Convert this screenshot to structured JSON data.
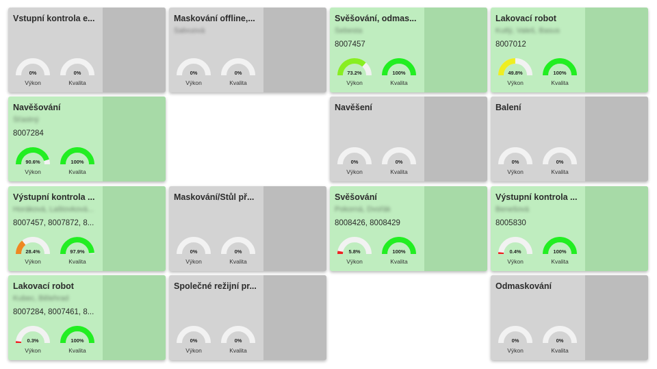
{
  "labels": {
    "performance": "Výkon",
    "quality": "Kvalita"
  },
  "colors": {
    "card_gray": "#d3d3d3",
    "card_green": "#bfedbf",
    "gauge_track": "#f2f2f2",
    "gauge_green": "#22ee22",
    "gauge_lime": "#88ee22",
    "gauge_yellow": "#eeee22",
    "gauge_orange": "#ee8822",
    "gauge_red": "#ee2222"
  },
  "cards": [
    {
      "title": "Vstupní kontrola e...",
      "subtitle": "",
      "orders": "",
      "status": "gray",
      "performance": {
        "value": 0,
        "text": "0%"
      },
      "quality": {
        "value": 0,
        "text": "0%"
      }
    },
    {
      "title": "Maskování offline,...",
      "subtitle": "Salvuová",
      "orders": "",
      "status": "gray",
      "performance": {
        "value": 0,
        "text": "0%"
      },
      "quality": {
        "value": 0,
        "text": "0%"
      }
    },
    {
      "title": "Svěšování, odmas...",
      "subtitle": "Šebesta",
      "orders": "8007457",
      "status": "green",
      "performance": {
        "value": 73.2,
        "text": "73.2%"
      },
      "quality": {
        "value": 100,
        "text": "100%"
      }
    },
    {
      "title": "Lakovací robot",
      "subtitle": "Kutlý, Valeš, Basus",
      "orders": "8007012",
      "status": "green",
      "performance": {
        "value": 49.8,
        "text": "49.8%"
      },
      "quality": {
        "value": 100,
        "text": "100%"
      }
    },
    {
      "title": "Navěšování",
      "subtitle": "Šťastný",
      "orders": "8007284",
      "status": "green",
      "performance": {
        "value": 90.6,
        "text": "90.6%"
      },
      "quality": {
        "value": 100,
        "text": "100%"
      }
    },
    {
      "title": "Navěšení",
      "subtitle": "",
      "orders": "",
      "status": "gray",
      "performance": {
        "value": 0,
        "text": "0%"
      },
      "quality": {
        "value": 0,
        "text": "0%"
      }
    },
    {
      "title": "Balení",
      "subtitle": "",
      "orders": "",
      "status": "gray",
      "performance": {
        "value": 0,
        "text": "0%"
      },
      "quality": {
        "value": 0,
        "text": "0%"
      }
    },
    {
      "title": "Výstupní kontrola ...",
      "subtitle": "Horáková, Laštovková...",
      "orders": "8007457, 8007872, 8...",
      "status": "green",
      "performance": {
        "value": 28.4,
        "text": "28.4%"
      },
      "quality": {
        "value": 97.9,
        "text": "97.9%"
      }
    },
    {
      "title": "Maskování/Stůl př...",
      "subtitle": "",
      "orders": "",
      "status": "gray",
      "performance": {
        "value": 0,
        "text": "0%"
      },
      "quality": {
        "value": 0,
        "text": "0%"
      }
    },
    {
      "title": "Svěšování",
      "subtitle": "Pokorná, Dvořák",
      "orders": "8008426, 8008429",
      "status": "green",
      "performance": {
        "value": 5.8,
        "text": "5.8%"
      },
      "quality": {
        "value": 100,
        "text": "100%"
      }
    },
    {
      "title": "Výstupní kontrola ...",
      "subtitle": "Benešová",
      "orders": "8005830",
      "status": "green",
      "performance": {
        "value": 0.4,
        "text": "0.4%"
      },
      "quality": {
        "value": 100,
        "text": "100%"
      }
    },
    {
      "title": "Lakovací robot",
      "subtitle": "Kubec, Bělehrad",
      "orders": "8007284, 8007461, 8...",
      "status": "green",
      "performance": {
        "value": 0.3,
        "text": "0.3%"
      },
      "quality": {
        "value": 100,
        "text": "100%"
      }
    },
    {
      "title": "Společné režijní pr...",
      "subtitle": "",
      "orders": "",
      "status": "gray",
      "performance": {
        "value": 0,
        "text": "0%"
      },
      "quality": {
        "value": 0,
        "text": "0%"
      }
    },
    {
      "title": "Odmaskování",
      "subtitle": "",
      "orders": "",
      "status": "gray",
      "performance": {
        "value": 0,
        "text": "0%"
      },
      "quality": {
        "value": 0,
        "text": "0%"
      }
    }
  ]
}
